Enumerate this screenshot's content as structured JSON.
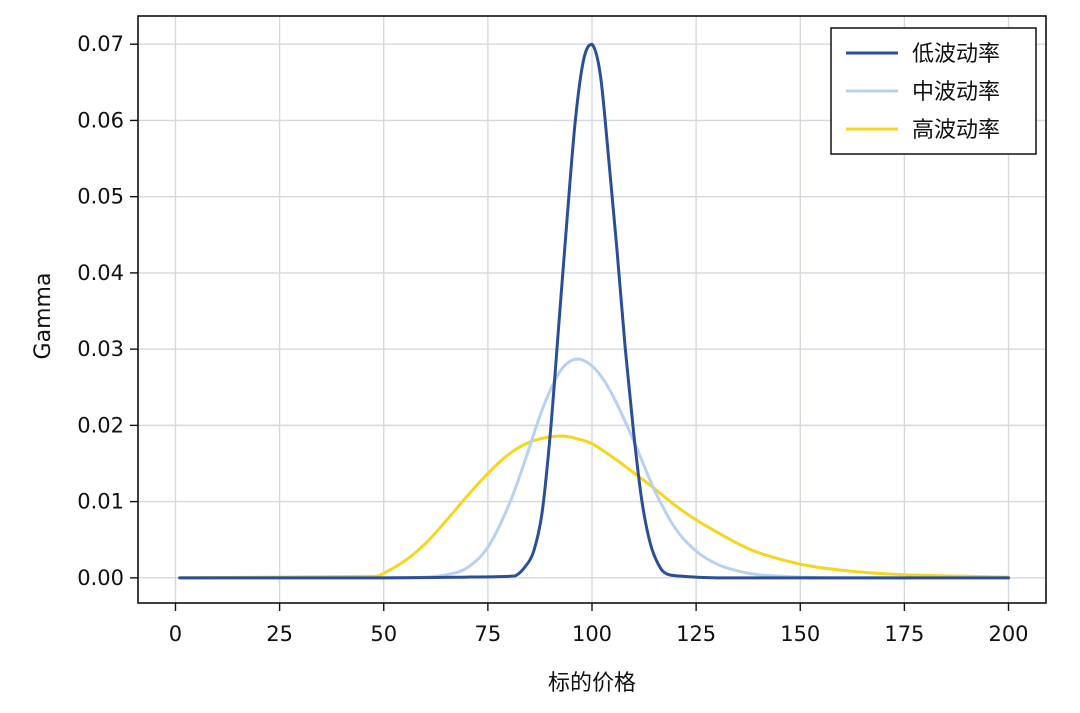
{
  "chart_data": {
    "type": "line",
    "title": "",
    "xlabel": "标的价格",
    "ylabel": "Gamma",
    "xlim": [
      -9,
      209
    ],
    "ylim": [
      -0.0033,
      0.0737
    ],
    "xticks": [
      0,
      25,
      50,
      75,
      100,
      125,
      150,
      175,
      200
    ],
    "yticks": [
      0.0,
      0.01,
      0.02,
      0.03,
      0.04,
      0.05,
      0.06,
      0.07
    ],
    "xtick_labels": [
      "0",
      "25",
      "50",
      "75",
      "100",
      "125",
      "150",
      "175",
      "200"
    ],
    "ytick_labels": [
      "0.00",
      "0.01",
      "0.02",
      "0.03",
      "0.04",
      "0.05",
      "0.06",
      "0.07"
    ],
    "grid": true,
    "legend_position": "top-right",
    "series": [
      {
        "name": "低波动率",
        "color": "#2b4f97",
        "x": [
          1,
          50,
          70,
          80,
          82,
          84,
          86,
          88,
          90,
          92,
          94,
          96,
          98,
          100,
          102,
          104,
          106,
          108,
          110,
          112,
          114,
          116,
          118,
          122,
          130,
          140,
          160,
          200
        ],
        "y": [
          0.0,
          0.0,
          0.0001,
          0.0002,
          0.0004,
          0.0015,
          0.0035,
          0.0085,
          0.019,
          0.033,
          0.047,
          0.06,
          0.068,
          0.07,
          0.066,
          0.055,
          0.043,
          0.03,
          0.019,
          0.01,
          0.0045,
          0.0017,
          0.0005,
          0.0002,
          0.0,
          0.0,
          0.0,
          0.0
        ]
      },
      {
        "name": "中波动率",
        "color": "#b7d1ee",
        "x": [
          1,
          50,
          60,
          65,
          70,
          75,
          80,
          84,
          88,
          92,
          95,
          97,
          100,
          103,
          106,
          110,
          115,
          120,
          125,
          130,
          135,
          140,
          150,
          160,
          175,
          200
        ],
        "y": [
          0.0,
          0.0,
          0.0001,
          0.0004,
          0.0013,
          0.004,
          0.0095,
          0.0155,
          0.022,
          0.0268,
          0.0285,
          0.0287,
          0.0278,
          0.0258,
          0.0228,
          0.018,
          0.0115,
          0.0065,
          0.0035,
          0.0018,
          0.0009,
          0.0004,
          0.0001,
          0.0,
          0.0,
          0.0
        ]
      },
      {
        "name": "高波动率",
        "color": "#f7d51f",
        "x": [
          1,
          25,
          45,
          48,
          50,
          55,
          60,
          65,
          70,
          75,
          80,
          85,
          90,
          93,
          96,
          100,
          105,
          110,
          115,
          120,
          125,
          130,
          135,
          140,
          150,
          160,
          175,
          200
        ],
        "y": [
          0.0,
          0.0001,
          0.0002,
          0.0002,
          0.0006,
          0.0022,
          0.0045,
          0.0075,
          0.0107,
          0.0137,
          0.0162,
          0.0178,
          0.0185,
          0.0186,
          0.0183,
          0.0176,
          0.0158,
          0.0138,
          0.0117,
          0.0095,
          0.0076,
          0.006,
          0.0045,
          0.0033,
          0.0018,
          0.001,
          0.0004,
          0.0001
        ]
      }
    ]
  }
}
